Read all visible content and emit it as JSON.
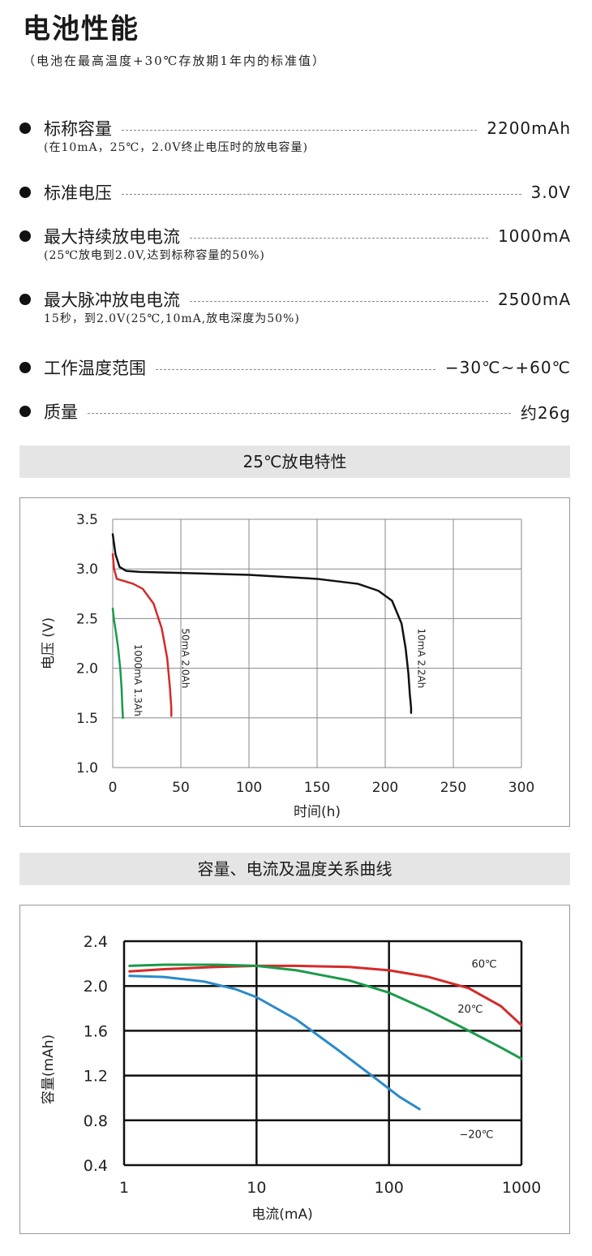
{
  "header": {
    "title": "电池性能",
    "subtitle": "（电池在最高温度+30℃存放期1年内的标准值）"
  },
  "specs": [
    {
      "label": "标称容量",
      "value": "2200mAh",
      "note": "(在10mA，25℃，2.0V终止电压时的放电容量)"
    },
    {
      "label": "标准电压",
      "value": "3.0V",
      "note": ""
    },
    {
      "label": "最大持续放电电流",
      "value": "1000mA",
      "note": "(25℃放电到2.0V,达到标称容量的50%)"
    },
    {
      "label": "最大脉冲放电电流",
      "value": "2500mA",
      "note": "15秒，到2.0V(25℃,10mA,放电深度为50%)"
    },
    {
      "label": "工作温度范围",
      "value": "−30℃~+60℃",
      "note": ""
    },
    {
      "label": "质量",
      "value": "约26g",
      "note": ""
    }
  ],
  "chart_data": [
    {
      "type": "line",
      "title": "25℃放电特性",
      "xlabel": "时间(h)",
      "ylabel": "电压 (V)",
      "xlim": [
        0,
        300
      ],
      "ylim": [
        1.0,
        3.5
      ],
      "xticks": [
        "0",
        "50",
        "100",
        "150",
        "200",
        "250",
        "300"
      ],
      "yticks": [
        "3.5",
        "3.0",
        "2.5",
        "2.0",
        "1.5",
        "1.0"
      ],
      "grid": true,
      "colors": [
        "#111111",
        "#d42a2a",
        "#1a9a4a"
      ],
      "series": [
        {
          "name": "10mA 2.2Ah",
          "color": "#111111",
          "x": [
            0,
            2,
            5,
            10,
            20,
            50,
            100,
            150,
            180,
            195,
            205,
            212,
            215,
            217,
            218,
            219,
            219
          ],
          "y": [
            3.35,
            3.15,
            3.02,
            2.98,
            2.97,
            2.96,
            2.94,
            2.9,
            2.85,
            2.78,
            2.68,
            2.45,
            2.2,
            1.95,
            1.75,
            1.6,
            1.55
          ]
        },
        {
          "name": "50mA 2.0Ah",
          "color": "#d42a2a",
          "x": [
            0,
            1,
            3,
            8,
            15,
            22,
            30,
            36,
            40,
            42,
            43,
            43
          ],
          "y": [
            3.15,
            3.0,
            2.9,
            2.88,
            2.85,
            2.8,
            2.65,
            2.4,
            2.1,
            1.8,
            1.6,
            1.52
          ]
        },
        {
          "name": "1000mA 1.3Ah",
          "color": "#1a9a4a",
          "x": [
            0,
            1,
            2.5,
            4,
            5.5,
            6.5,
            7,
            7.5
          ],
          "y": [
            2.6,
            2.48,
            2.35,
            2.2,
            2.0,
            1.8,
            1.62,
            1.5
          ]
        }
      ]
    },
    {
      "type": "line",
      "title": "容量、电流及温度关系曲线",
      "xlabel": "电流(mA)",
      "ylabel": "容量(mAh)",
      "xscale": "log",
      "xlim": [
        1,
        1000
      ],
      "ylim": [
        0.4,
        2.4
      ],
      "xticks": [
        "1",
        "10",
        "100",
        "1000"
      ],
      "yticks": [
        "2.4",
        "2.0",
        "1.6",
        "1.2",
        "0.8",
        "0.4"
      ],
      "grid": true,
      "colors": [
        "#d42a2a",
        "#1a9a4a",
        "#2a8ac8"
      ],
      "series": [
        {
          "name": "60℃",
          "color": "#d42a2a",
          "x": [
            1.1,
            2,
            5,
            10,
            20,
            50,
            100,
            200,
            400,
            700,
            1000
          ],
          "y": [
            2.13,
            2.15,
            2.17,
            2.18,
            2.18,
            2.17,
            2.14,
            2.08,
            1.98,
            1.82,
            1.65
          ]
        },
        {
          "name": "20℃",
          "color": "#1a9a4a",
          "x": [
            1.1,
            2,
            5,
            10,
            20,
            50,
            100,
            200,
            400,
            700,
            1000
          ],
          "y": [
            2.18,
            2.19,
            2.19,
            2.18,
            2.14,
            2.05,
            1.94,
            1.78,
            1.6,
            1.45,
            1.35
          ]
        },
        {
          "name": "−20℃",
          "color": "#2a8ac8",
          "x": [
            1.1,
            2,
            4,
            7,
            10,
            20,
            40,
            80,
            120,
            170
          ],
          "y": [
            2.09,
            2.08,
            2.04,
            1.97,
            1.9,
            1.7,
            1.44,
            1.17,
            1.01,
            0.9
          ]
        }
      ]
    }
  ]
}
